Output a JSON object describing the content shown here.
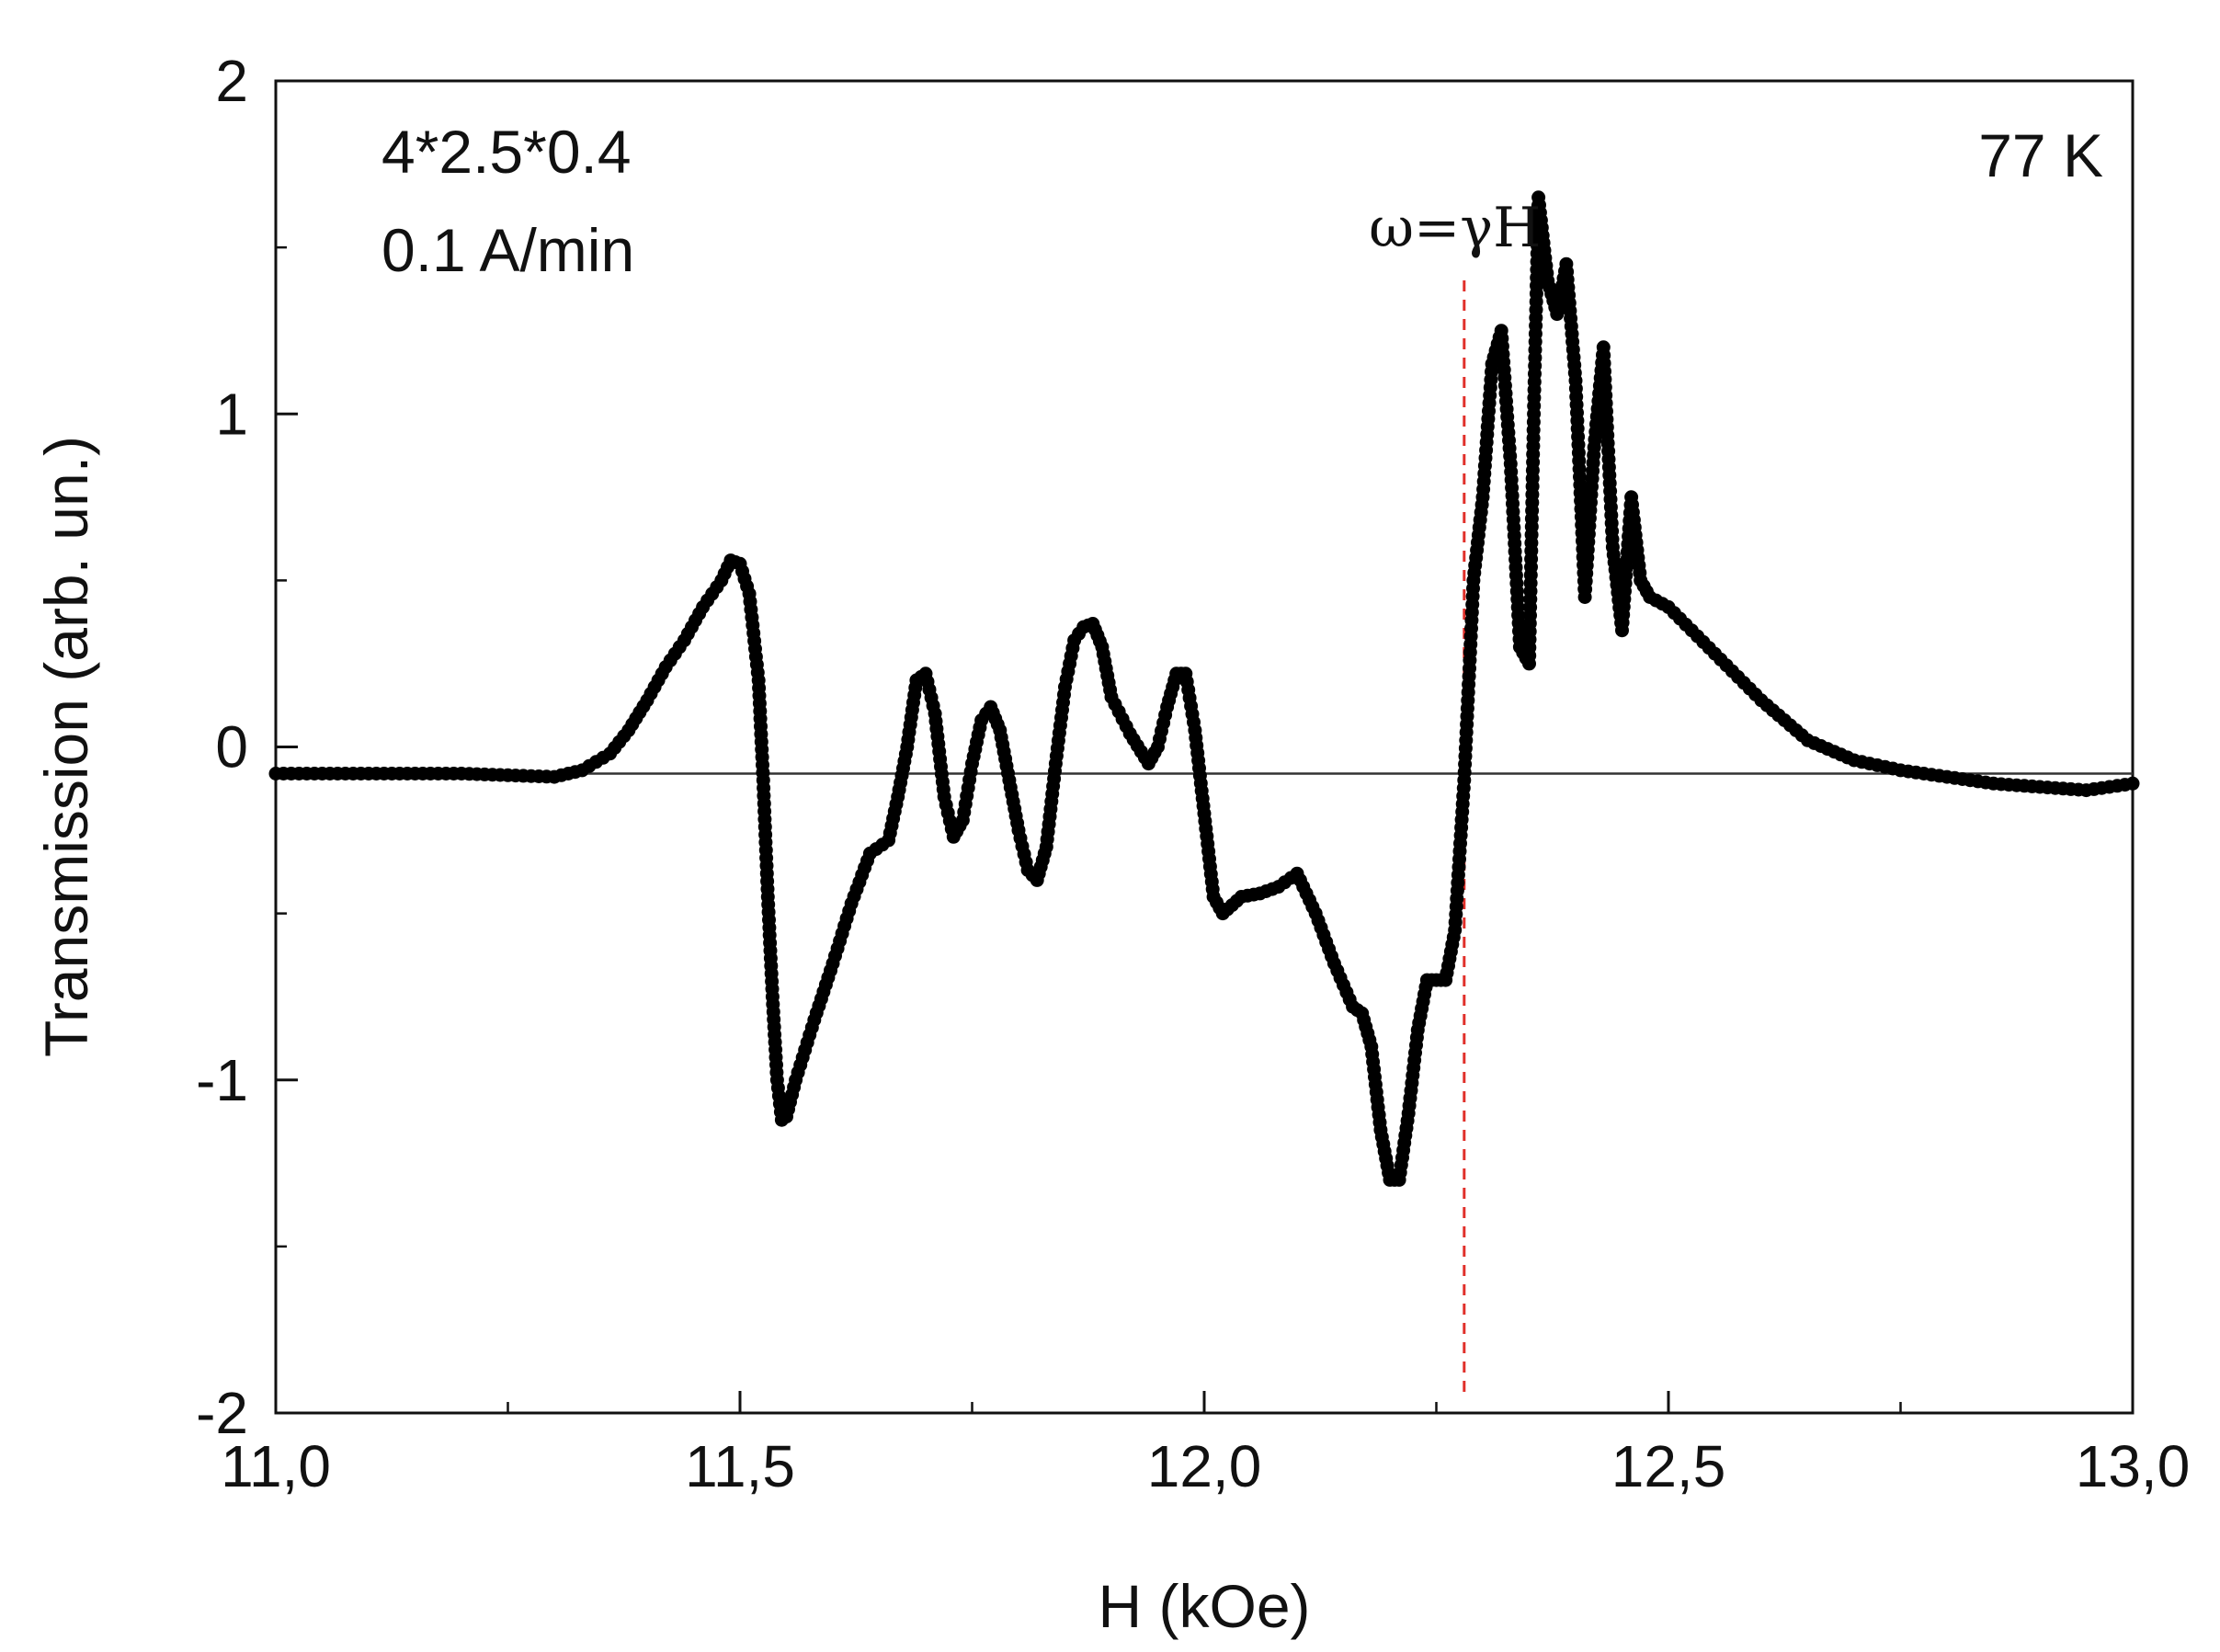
{
  "chart_data": {
    "type": "scatter",
    "xlabel": "H (kOe)",
    "ylabel": "Transmission (arb. un.)",
    "xlim": [
      11.0,
      13.0
    ],
    "ylim": [
      -2,
      2
    ],
    "x_ticks": [
      11.0,
      11.5,
      12.0,
      12.5,
      13.0
    ],
    "x_tick_labels": [
      "11,0",
      "11,5",
      "12,0",
      "12,5",
      "13,0"
    ],
    "x_minor_step": 0.25,
    "y_ticks": [
      -2,
      -1,
      0,
      1,
      2
    ],
    "y_tick_labels": [
      "-2",
      "-1",
      "0",
      "1",
      "2"
    ],
    "y_minor_step": 0.5,
    "grid": false,
    "baseline_y": -0.08,
    "marker_color": "#000000",
    "reference_line": {
      "x": 12.28,
      "color": "#e0302a",
      "label": "ω=γH"
    },
    "annotations": {
      "sample_size": "4*2.5*0.4",
      "sweep_rate": "0.1 A/min",
      "temperature": "77 K"
    },
    "series": [
      {
        "points": [
          [
            11.0,
            -0.08
          ],
          [
            11.1,
            -0.08
          ],
          [
            11.2,
            -0.08
          ],
          [
            11.3,
            -0.09
          ],
          [
            11.33,
            -0.07
          ],
          [
            11.36,
            -0.02
          ],
          [
            11.38,
            0.05
          ],
          [
            11.4,
            0.14
          ],
          [
            11.42,
            0.24
          ],
          [
            11.44,
            0.32
          ],
          [
            11.46,
            0.42
          ],
          [
            11.48,
            0.5
          ],
          [
            11.49,
            0.56
          ],
          [
            11.5,
            0.55
          ],
          [
            11.51,
            0.46
          ],
          [
            11.52,
            0.2
          ],
          [
            11.525,
            -0.1
          ],
          [
            11.53,
            -0.45
          ],
          [
            11.535,
            -0.75
          ],
          [
            11.54,
            -1.0
          ],
          [
            11.545,
            -1.12
          ],
          [
            11.55,
            -1.11
          ],
          [
            11.56,
            -1.0
          ],
          [
            11.58,
            -0.82
          ],
          [
            11.6,
            -0.65
          ],
          [
            11.62,
            -0.47
          ],
          [
            11.64,
            -0.32
          ],
          [
            11.66,
            -0.28
          ],
          [
            11.67,
            -0.15
          ],
          [
            11.68,
            0.0
          ],
          [
            11.69,
            0.2
          ],
          [
            11.7,
            0.22
          ],
          [
            11.71,
            0.1
          ],
          [
            11.72,
            -0.15
          ],
          [
            11.73,
            -0.27
          ],
          [
            11.74,
            -0.22
          ],
          [
            11.75,
            -0.05
          ],
          [
            11.76,
            0.08
          ],
          [
            11.77,
            0.12
          ],
          [
            11.78,
            0.05
          ],
          [
            11.79,
            -0.1
          ],
          [
            11.8,
            -0.25
          ],
          [
            11.81,
            -0.37
          ],
          [
            11.82,
            -0.4
          ],
          [
            11.83,
            -0.3
          ],
          [
            11.84,
            -0.05
          ],
          [
            11.85,
            0.18
          ],
          [
            11.86,
            0.32
          ],
          [
            11.87,
            0.36
          ],
          [
            11.88,
            0.37
          ],
          [
            11.89,
            0.3
          ],
          [
            11.9,
            0.15
          ],
          [
            11.92,
            0.04
          ],
          [
            11.94,
            -0.05
          ],
          [
            11.95,
            0.0
          ],
          [
            11.96,
            0.12
          ],
          [
            11.97,
            0.22
          ],
          [
            11.98,
            0.22
          ],
          [
            11.99,
            0.05
          ],
          [
            12.0,
            -0.2
          ],
          [
            12.01,
            -0.45
          ],
          [
            12.02,
            -0.5
          ],
          [
            12.04,
            -0.45
          ],
          [
            12.06,
            -0.44
          ],
          [
            12.08,
            -0.42
          ],
          [
            12.1,
            -0.38
          ],
          [
            12.12,
            -0.5
          ],
          [
            12.14,
            -0.65
          ],
          [
            12.16,
            -0.78
          ],
          [
            12.17,
            -0.8
          ],
          [
            12.18,
            -0.9
          ],
          [
            12.19,
            -1.15
          ],
          [
            12.2,
            -1.3
          ],
          [
            12.21,
            -1.3
          ],
          [
            12.22,
            -1.1
          ],
          [
            12.23,
            -0.85
          ],
          [
            12.24,
            -0.7
          ],
          [
            12.25,
            -0.7
          ],
          [
            12.26,
            -0.7
          ],
          [
            12.27,
            -0.55
          ],
          [
            12.28,
            -0.1
          ],
          [
            12.29,
            0.5
          ],
          [
            12.3,
            0.75
          ],
          [
            12.31,
            1.15
          ],
          [
            12.32,
            1.25
          ],
          [
            12.33,
            0.85
          ],
          [
            12.34,
            0.3
          ],
          [
            12.35,
            0.25
          ],
          [
            12.355,
            1.0
          ],
          [
            12.36,
            1.65
          ],
          [
            12.37,
            1.4
          ],
          [
            12.38,
            1.3
          ],
          [
            12.39,
            1.45
          ],
          [
            12.4,
            1.1
          ],
          [
            12.41,
            0.45
          ],
          [
            12.42,
            0.9
          ],
          [
            12.43,
            1.2
          ],
          [
            12.44,
            0.6
          ],
          [
            12.45,
            0.35
          ],
          [
            12.46,
            0.75
          ],
          [
            12.47,
            0.5
          ],
          [
            12.48,
            0.45
          ],
          [
            12.5,
            0.42
          ],
          [
            12.55,
            0.28
          ],
          [
            12.6,
            0.14
          ],
          [
            12.65,
            0.02
          ],
          [
            12.7,
            -0.04
          ],
          [
            12.75,
            -0.07
          ],
          [
            12.8,
            -0.09
          ],
          [
            12.85,
            -0.11
          ],
          [
            12.9,
            -0.12
          ],
          [
            12.95,
            -0.13
          ],
          [
            13.0,
            -0.11
          ]
        ]
      }
    ]
  }
}
